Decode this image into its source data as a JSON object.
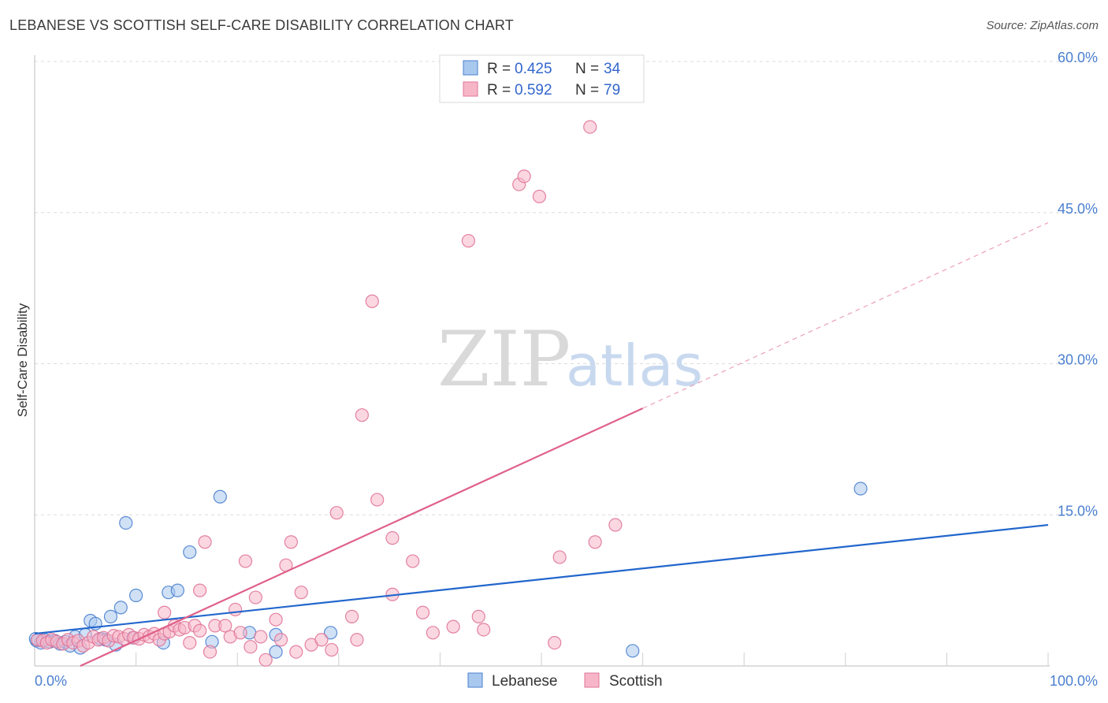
{
  "header": {
    "title": "LEBANESE VS SCOTTISH SELF-CARE DISABILITY CORRELATION CHART",
    "source": "Source: ZipAtlas.com"
  },
  "watermark": {
    "zip": "ZIP",
    "atlas": "atlas"
  },
  "legend": {
    "rows": [
      {
        "r_label": "R = ",
        "r_value": "0.425",
        "n_label": "N = ",
        "n_value": "34"
      },
      {
        "r_label": "R = ",
        "r_value": "0.592",
        "n_label": "N = ",
        "n_value": "79"
      }
    ]
  },
  "chart_data": {
    "type": "scatter",
    "title": "LEBANESE VS SCOTTISH SELF-CARE DISABILITY CORRELATION CHART",
    "xlabel": "",
    "ylabel": "Self-Care Disability",
    "xlim": [
      0,
      100
    ],
    "ylim": [
      0,
      60
    ],
    "x_ticks": [
      {
        "value": 0,
        "label": "0.0%"
      },
      {
        "value": 100,
        "label": "100.0%"
      }
    ],
    "y_ticks": [
      {
        "value": 15,
        "label": "15.0%"
      },
      {
        "value": 30,
        "label": "30.0%"
      },
      {
        "value": 45,
        "label": "45.0%"
      },
      {
        "value": 60,
        "label": "60.0%"
      }
    ],
    "grid": true,
    "legend_position": "top-center",
    "colors": {
      "lebanese_fill": "#a9c8ee",
      "lebanese_stroke": "#4a7fcf",
      "lebanese_line": "#2266cc",
      "scottish_fill": "#f7b6c8",
      "scottish_stroke": "#e07498",
      "scottish_line": "#e0608a",
      "tick_text": "#4a7fcf"
    },
    "series": [
      {
        "name": "Lebanese",
        "r": 0.425,
        "n": 34,
        "trend": {
          "x0": 0,
          "y0": 3.2,
          "x1": 100,
          "y1": 14.0,
          "solid_to": 100
        },
        "points": [
          [
            0.2,
            2.5
          ],
          [
            0.6,
            2.3
          ],
          [
            1.0,
            2.6
          ],
          [
            1.5,
            2.4
          ],
          [
            2.0,
            2.5
          ],
          [
            2.5,
            2.2
          ],
          [
            3.0,
            2.4
          ],
          [
            3.5,
            2.0
          ],
          [
            4.0,
            2.9
          ],
          [
            4.5,
            1.8
          ],
          [
            5.0,
            3.1
          ],
          [
            5.5,
            4.5
          ],
          [
            6.0,
            4.2
          ],
          [
            6.5,
            2.7
          ],
          [
            7.0,
            2.6
          ],
          [
            7.5,
            4.9
          ],
          [
            8.0,
            2.1
          ],
          [
            8.5,
            5.8
          ],
          [
            9.0,
            14.2
          ],
          [
            9.7,
            2.8
          ],
          [
            10.0,
            7.0
          ],
          [
            12.7,
            2.3
          ],
          [
            13.2,
            7.3
          ],
          [
            14.1,
            7.5
          ],
          [
            15.3,
            11.3
          ],
          [
            17.5,
            2.4
          ],
          [
            18.3,
            16.8
          ],
          [
            21.2,
            3.3
          ],
          [
            23.8,
            3.1
          ],
          [
            23.8,
            1.4
          ],
          [
            29.2,
            3.3
          ],
          [
            59.0,
            1.5
          ],
          [
            81.5,
            17.6
          ],
          [
            0.1,
            2.7
          ]
        ]
      },
      {
        "name": "Scottish",
        "r": 0.592,
        "n": 79,
        "trend": {
          "x0": 4.5,
          "y0": 0,
          "x1": 100,
          "y1": 44.0,
          "solid_to": 60
        },
        "points": [
          [
            0.3,
            2.6
          ],
          [
            0.8,
            2.5
          ],
          [
            1.2,
            2.3
          ],
          [
            1.7,
            2.6
          ],
          [
            2.2,
            2.4
          ],
          [
            2.8,
            2.2
          ],
          [
            3.3,
            2.6
          ],
          [
            3.8,
            2.3
          ],
          [
            4.3,
            2.5
          ],
          [
            4.8,
            2.0
          ],
          [
            5.3,
            2.3
          ],
          [
            5.8,
            2.9
          ],
          [
            6.3,
            2.6
          ],
          [
            6.8,
            2.8
          ],
          [
            7.3,
            2.5
          ],
          [
            7.8,
            3.0
          ],
          [
            8.3,
            2.9
          ],
          [
            8.8,
            2.7
          ],
          [
            9.3,
            3.1
          ],
          [
            9.8,
            2.8
          ],
          [
            10.3,
            2.7
          ],
          [
            10.8,
            3.1
          ],
          [
            11.3,
            2.9
          ],
          [
            11.8,
            3.2
          ],
          [
            12.3,
            2.6
          ],
          [
            12.8,
            3.2
          ],
          [
            12.8,
            5.3
          ],
          [
            13.3,
            3.4
          ],
          [
            13.8,
            4.0
          ],
          [
            14.3,
            3.6
          ],
          [
            14.8,
            3.8
          ],
          [
            15.3,
            2.3
          ],
          [
            15.8,
            4.0
          ],
          [
            16.3,
            3.5
          ],
          [
            16.3,
            7.5
          ],
          [
            16.8,
            12.3
          ],
          [
            17.3,
            1.4
          ],
          [
            17.8,
            4.0
          ],
          [
            18.8,
            4.0
          ],
          [
            19.3,
            2.9
          ],
          [
            19.8,
            5.6
          ],
          [
            20.3,
            3.3
          ],
          [
            20.8,
            10.4
          ],
          [
            21.3,
            1.9
          ],
          [
            21.8,
            6.8
          ],
          [
            22.3,
            2.9
          ],
          [
            22.8,
            0.6
          ],
          [
            23.8,
            4.6
          ],
          [
            24.3,
            2.6
          ],
          [
            24.8,
            10.0
          ],
          [
            25.3,
            12.3
          ],
          [
            25.8,
            1.4
          ],
          [
            26.3,
            7.3
          ],
          [
            27.3,
            2.1
          ],
          [
            28.3,
            2.6
          ],
          [
            29.3,
            1.6
          ],
          [
            29.8,
            15.2
          ],
          [
            31.3,
            4.9
          ],
          [
            31.8,
            2.6
          ],
          [
            32.3,
            24.9
          ],
          [
            33.3,
            36.2
          ],
          [
            33.8,
            16.5
          ],
          [
            35.3,
            12.7
          ],
          [
            35.3,
            7.1
          ],
          [
            37.3,
            10.4
          ],
          [
            38.3,
            5.3
          ],
          [
            39.3,
            3.3
          ],
          [
            41.3,
            3.9
          ],
          [
            42.8,
            42.2
          ],
          [
            43.8,
            4.9
          ],
          [
            44.3,
            3.6
          ],
          [
            47.8,
            47.8
          ],
          [
            48.3,
            48.6
          ],
          [
            49.8,
            46.6
          ],
          [
            51.3,
            2.3
          ],
          [
            51.8,
            10.8
          ],
          [
            54.8,
            53.5
          ],
          [
            55.3,
            12.3
          ],
          [
            57.3,
            14.0
          ]
        ]
      }
    ]
  },
  "bottom_legend": {
    "items": [
      {
        "label": "Lebanese"
      },
      {
        "label": "Scottish"
      }
    ]
  }
}
